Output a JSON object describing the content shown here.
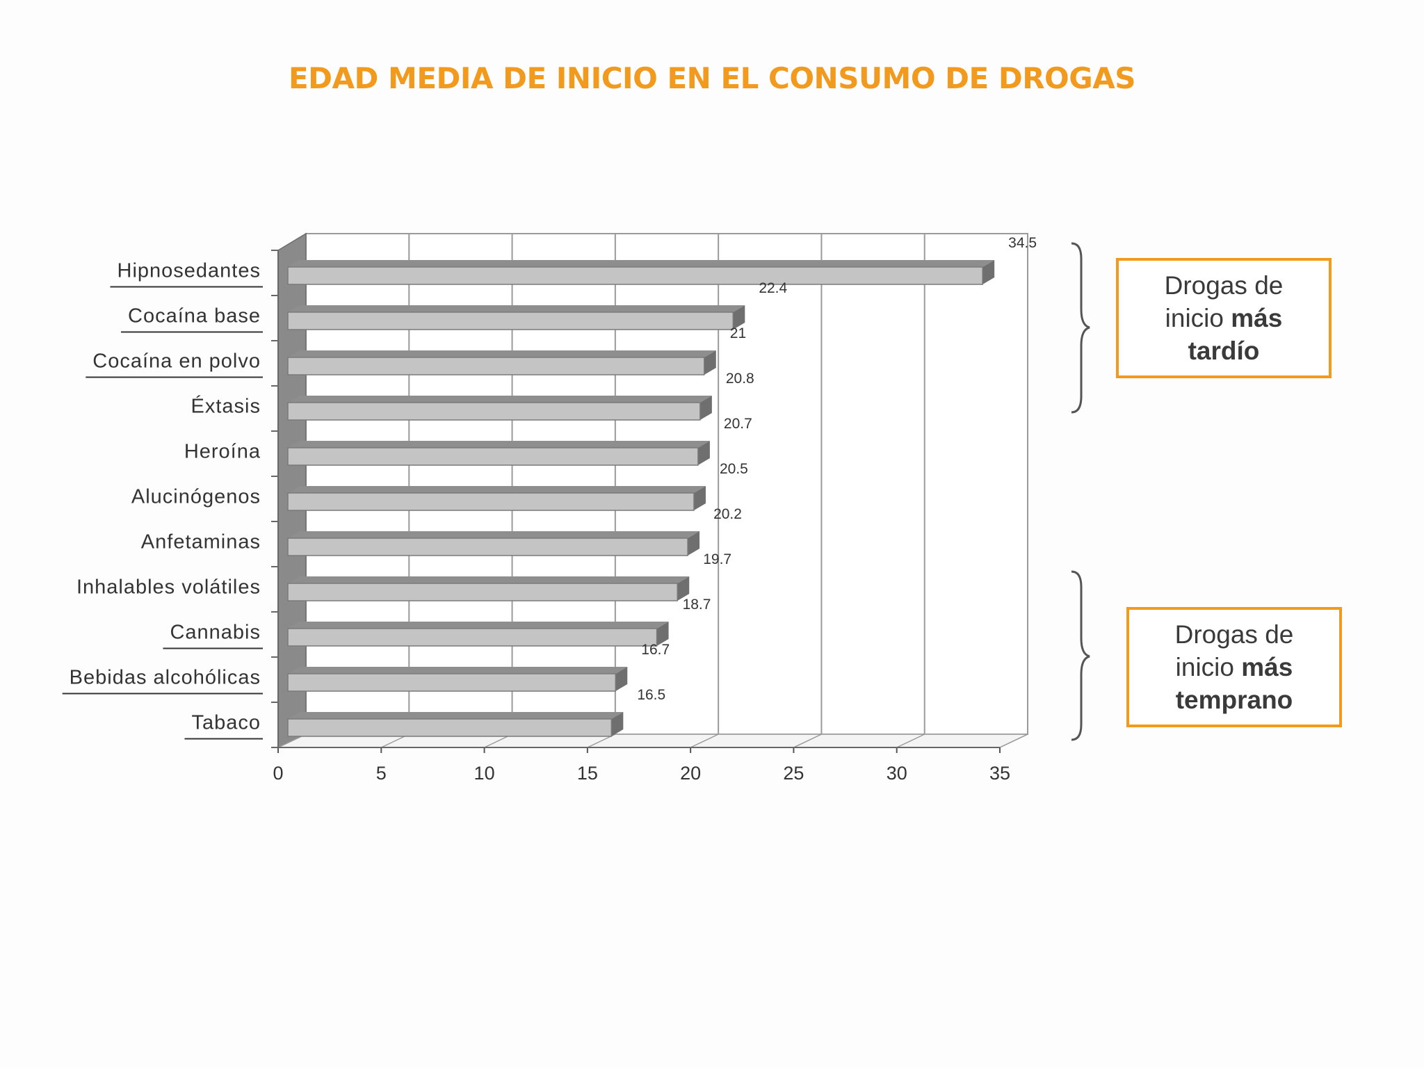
{
  "title": "EDAD MEDIA DE INICIO EN EL CONSUMO DE DROGAS",
  "chart_data": {
    "type": "bar",
    "orientation": "horizontal",
    "title": "EDAD MEDIA DE INICIO EN EL CONSUMO DE DROGAS",
    "categories": [
      "Hipnosedantes",
      "Cocaína base",
      "Cocaína en polvo",
      "Éxtasis",
      "Heroína",
      "Alucinógenos",
      "Anfetaminas",
      "Inhalables volátiles",
      "Cannabis",
      "Bebidas alcohólicas",
      "Tabaco"
    ],
    "values": [
      34.5,
      22.4,
      21,
      20.8,
      20.7,
      20.5,
      20.2,
      19.7,
      18.7,
      16.7,
      16.5
    ],
    "value_labels": [
      "34.5",
      "22.4",
      "21",
      "20.8",
      "20.7",
      "20.5",
      "20.2",
      "19.7",
      "18.7",
      "16.7",
      "16.5"
    ],
    "underlined_categories": [
      "Hipnosedantes",
      "Cocaína base",
      "Cocaína en polvo",
      "Cannabis",
      "Bebidas alcohólicas",
      "Tabaco"
    ],
    "xlim": [
      0,
      35
    ],
    "xticks": [
      "0",
      "5",
      "10",
      "15",
      "20",
      "25",
      "30",
      "35"
    ],
    "grid": true,
    "style": "3d",
    "bar_color": "#c4c4c4"
  },
  "annotations": {
    "late": {
      "line1": "Drogas de",
      "line2_prefix": "inicio ",
      "line2_bold": "más",
      "line3_bold": "tardío"
    },
    "early": {
      "line1": "Drogas de",
      "line2_prefix": "inicio ",
      "line2_bold": "más",
      "line3_bold": "temprano"
    },
    "accent_color": "#f29a1d"
  }
}
